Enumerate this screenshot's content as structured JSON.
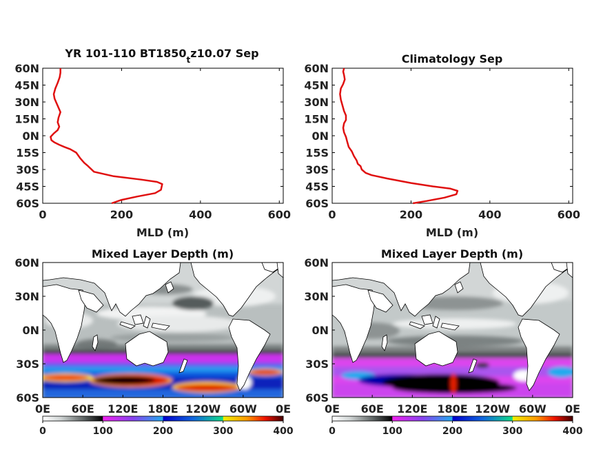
{
  "chart_data": [
    {
      "type": "line",
      "title": "YR 101-110 BT1850",
      "title_subscript": "t",
      "title_suffix": "z10.07 Sep",
      "xlabel": "MLD (m)",
      "ylabel": "",
      "xlim": [
        0,
        610
      ],
      "ylim": [
        -60,
        60
      ],
      "xticks": [
        "0",
        "200",
        "400",
        "600"
      ],
      "yticks": [
        "60N",
        "45N",
        "30N",
        "15N",
        "0N",
        "15S",
        "30S",
        "45S",
        "60S"
      ],
      "series_color": "#e01010",
      "series": [
        {
          "x": [
            175,
            200,
            240,
            285,
            300,
            303,
            290,
            250,
            180,
            130,
            115,
            105,
            95,
            85,
            70,
            55,
            42,
            30,
            22,
            20,
            28,
            38,
            42,
            38,
            40,
            45,
            40,
            35,
            30,
            28,
            32,
            38,
            43,
            45,
            45
          ],
          "y": [
            -60,
            -57,
            -54,
            -51,
            -48,
            -43,
            -41,
            -39,
            -36,
            -32,
            -27,
            -24,
            -20,
            -15,
            -12,
            -10,
            -8,
            -6,
            -4,
            -1,
            2,
            5,
            8,
            12,
            16,
            21,
            25,
            29,
            33,
            37,
            42,
            47,
            52,
            56,
            60
          ]
        }
      ]
    },
    {
      "type": "line",
      "title": "Climatology Sep",
      "xlabel": "MLD (m)",
      "ylabel": "",
      "xlim": [
        0,
        610
      ],
      "ylim": [
        -60,
        60
      ],
      "xticks": [
        "0",
        "200",
        "400",
        "600"
      ],
      "yticks": [
        "60N",
        "45N",
        "30N",
        "15N",
        "0N",
        "15S",
        "30S",
        "45S",
        "60S"
      ],
      "series_color": "#e01010",
      "series": [
        {
          "x": [
            205,
            240,
            285,
            315,
            318,
            300,
            255,
            200,
            140,
            100,
            85,
            75,
            72,
            65,
            62,
            55,
            50,
            42,
            38,
            35,
            30,
            28,
            30,
            35,
            35,
            30,
            26,
            22,
            20,
            22,
            28,
            32,
            30,
            28,
            30
          ],
          "y": [
            -60,
            -58,
            -55,
            -52,
            -49,
            -47,
            -45,
            -42,
            -38,
            -35,
            -33,
            -30,
            -27,
            -25,
            -22,
            -18,
            -14,
            -10,
            -5,
            -1,
            3,
            7,
            11,
            14,
            18,
            22,
            27,
            32,
            37,
            42,
            46,
            50,
            54,
            57,
            60
          ]
        }
      ]
    },
    {
      "type": "heatmap",
      "title": "Mixed Layer Depth (m)",
      "xticks": [
        "0E",
        "60E",
        "120E",
        "180E",
        "120W",
        "60W",
        "0E"
      ],
      "yticks": [
        "60N",
        "30N",
        "0N",
        "30S",
        "60S"
      ],
      "colorbar": {
        "min": 0,
        "max": 400,
        "ticks": [
          "0",
          "100",
          "200",
          "300",
          "400"
        ]
      },
      "lat_range": [
        -60,
        60
      ],
      "lon_range": [
        0,
        360
      ]
    },
    {
      "type": "heatmap",
      "title": "Mixed Layer Depth (m)",
      "xticks": [
        "0E",
        "60E",
        "120E",
        "180E",
        "120W",
        "60W",
        "0E"
      ],
      "yticks": [
        "60N",
        "30N",
        "0N",
        "30S",
        "60S"
      ],
      "colorbar": {
        "min": 0,
        "max": 400,
        "ticks": [
          "0",
          "100",
          "200",
          "300",
          "400"
        ]
      },
      "lat_range": [
        -60,
        60
      ],
      "lon_range": [
        0,
        360
      ]
    }
  ],
  "colormap_stops": [
    {
      "v": 0,
      "c": "#ffffff"
    },
    {
      "v": 30,
      "c": "#cfd4d4"
    },
    {
      "v": 70,
      "c": "#5a6060"
    },
    {
      "v": 100,
      "c": "#000000"
    },
    {
      "v": 101,
      "c": "#ee22ee"
    },
    {
      "v": 150,
      "c": "#8844ee"
    },
    {
      "v": 200,
      "c": "#22aaee"
    },
    {
      "v": 201,
      "c": "#0000cc"
    },
    {
      "v": 250,
      "c": "#1166dd"
    },
    {
      "v": 300,
      "c": "#11dd88"
    },
    {
      "v": 301,
      "c": "#eeee00"
    },
    {
      "v": 340,
      "c": "#ff9900"
    },
    {
      "v": 370,
      "c": "#ee1100"
    },
    {
      "v": 400,
      "c": "#440000"
    }
  ]
}
